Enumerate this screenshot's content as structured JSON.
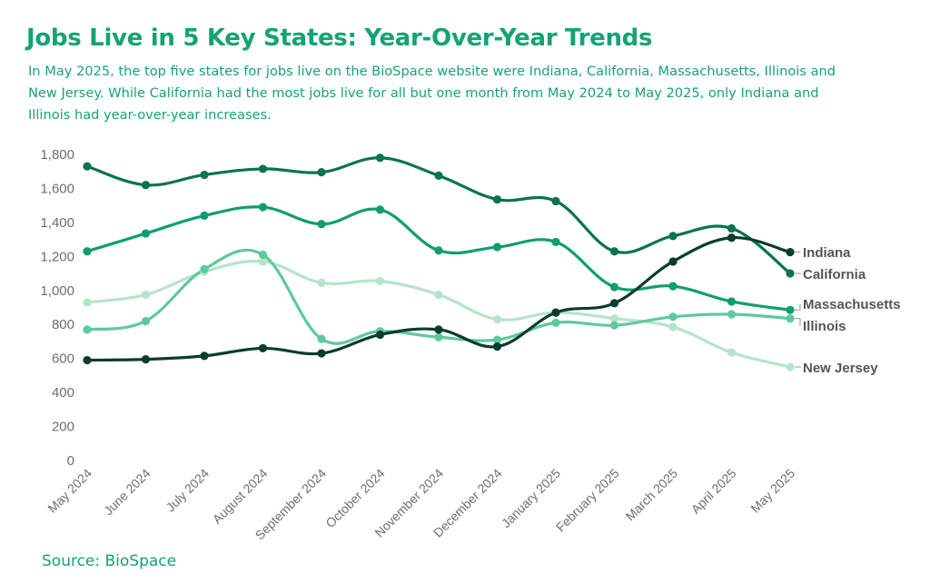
{
  "title": "Jobs Live in 5 Key States: Year-Over-Year Trends",
  "subtitle": "In May 2025, the top five states for jobs live on the BioSpace website were Indiana, California, Massachusetts, Illinois and New Jersey. While California had the most jobs live for all but one month from May 2024 to May 2025, only Indiana and Illinois had year-over-year increases.",
  "source": "Source: BioSpace",
  "chart_data": {
    "type": "line",
    "title": "Jobs Live in 5 Key States: Year-Over-Year Trends",
    "xlabel": "",
    "ylabel": "",
    "ylim": [
      0,
      1800
    ],
    "yticks": [
      0,
      200,
      400,
      600,
      800,
      1000,
      1200,
      1400,
      1600,
      1800
    ],
    "ytick_labels": [
      "0",
      "200",
      "400",
      "600",
      "800",
      "1,000",
      "1,200",
      "1,400",
      "1,600",
      "1,800"
    ],
    "grid": false,
    "legend": "direct-labels-right",
    "categories": [
      "May 2024",
      "June 2024",
      "July 2024",
      "August 2024",
      "September 2024",
      "October 2024",
      "November 2024",
      "December 2024",
      "January 2025",
      "February 2025",
      "March 2025",
      "April 2025",
      "May 2025"
    ],
    "series": [
      {
        "name": "Indiana",
        "color": "#0b3d2a",
        "values": [
          590,
          595,
          615,
          660,
          630,
          740,
          770,
          670,
          870,
          925,
          1170,
          1310,
          1225
        ]
      },
      {
        "name": "California",
        "color": "#0a7350",
        "values": [
          1730,
          1620,
          1680,
          1715,
          1695,
          1780,
          1675,
          1535,
          1525,
          1230,
          1320,
          1365,
          1100
        ]
      },
      {
        "name": "Massachusetts",
        "color": "#0f9e6e",
        "values": [
          1230,
          1335,
          1440,
          1490,
          1390,
          1475,
          1235,
          1255,
          1285,
          1020,
          1025,
          935,
          885
        ]
      },
      {
        "name": "Illinois",
        "color": "#5ec99b",
        "values": [
          770,
          820,
          1125,
          1210,
          715,
          760,
          725,
          710,
          810,
          795,
          845,
          860,
          835
        ]
      },
      {
        "name": "New Jersey",
        "color": "#b6e4c9",
        "values": [
          930,
          975,
          1110,
          1170,
          1045,
          1055,
          975,
          830,
          870,
          835,
          785,
          635,
          550
        ]
      }
    ]
  }
}
